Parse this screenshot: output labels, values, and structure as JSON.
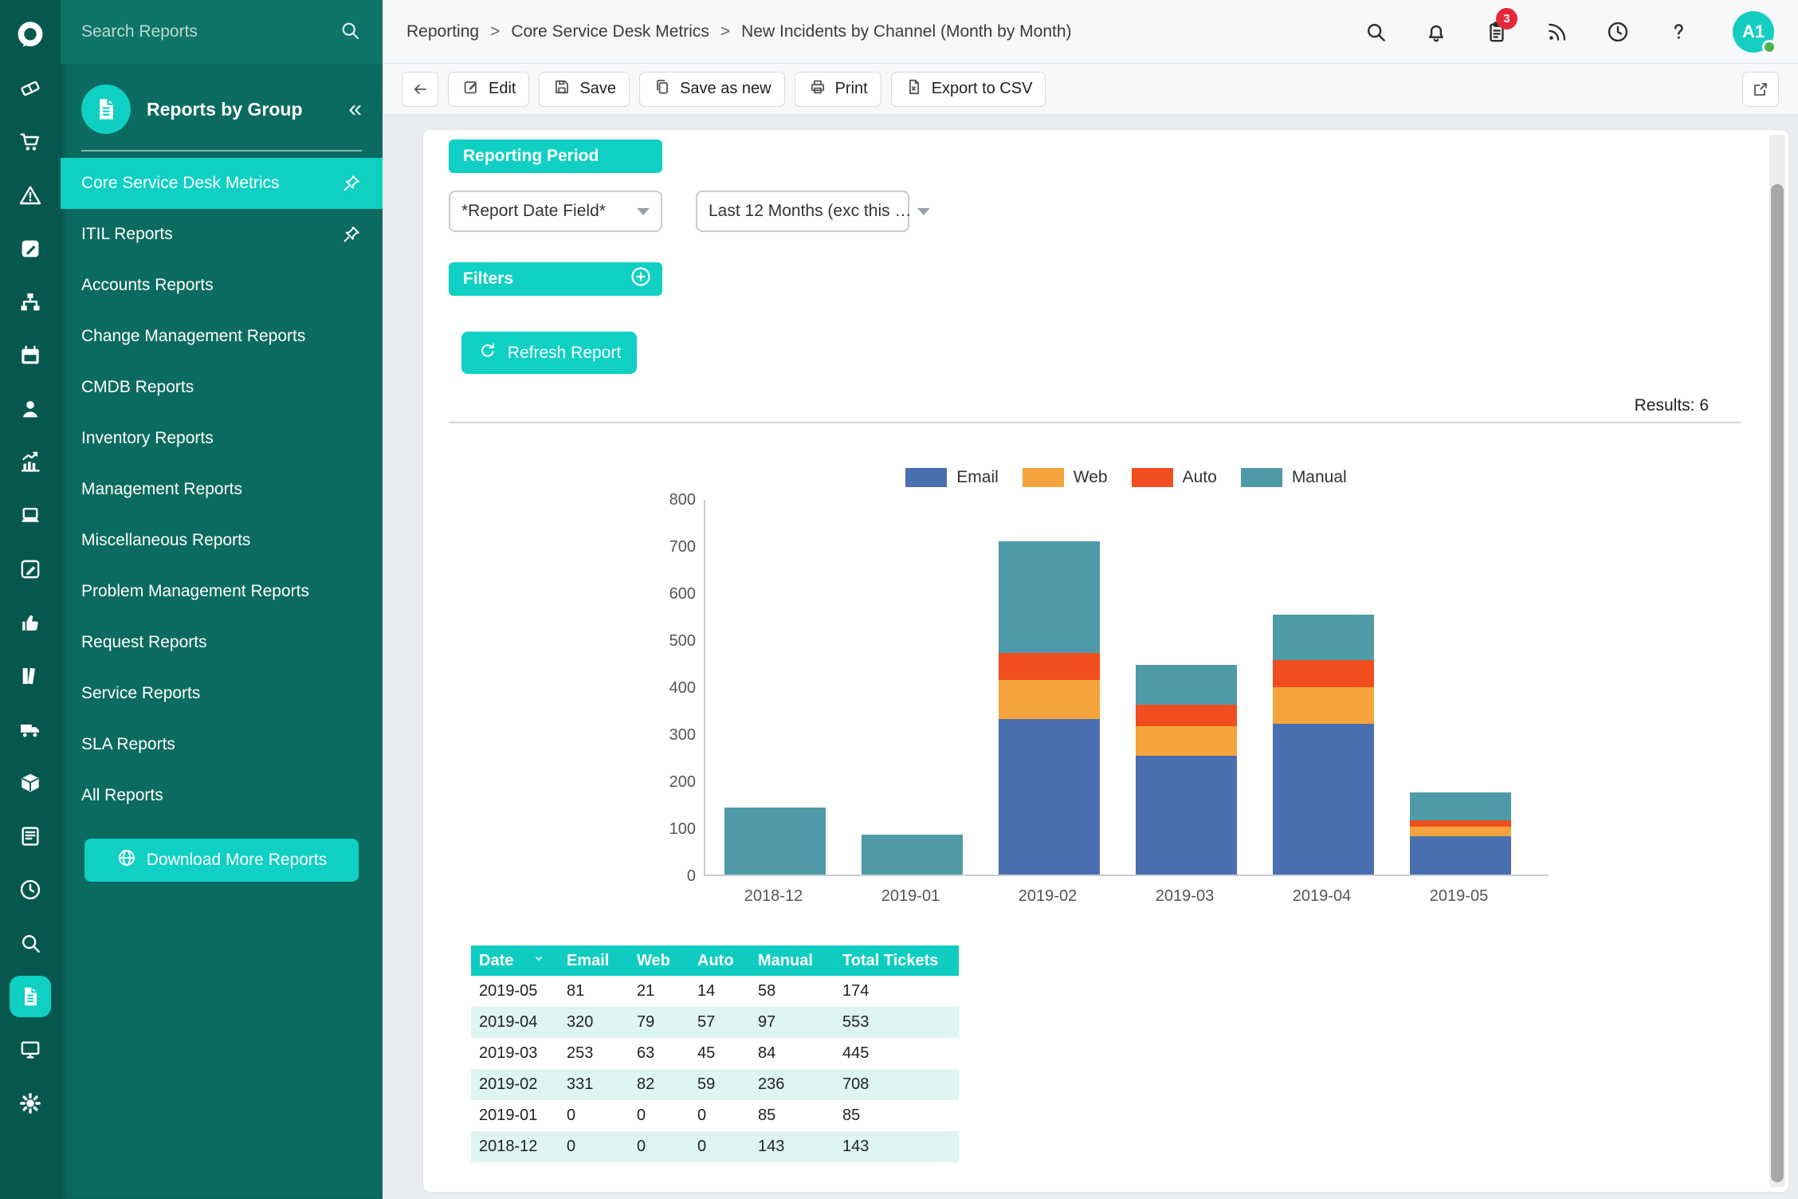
{
  "accent": "#0fd0c3",
  "rail": {
    "icons": [
      "halo-logo",
      "ticket",
      "shopping-cart",
      "warning-triangle",
      "edit-square",
      "sitemap",
      "calendar",
      "user",
      "bar-chart",
      "laptop",
      "note-edit",
      "thumbs-up",
      "books",
      "delivery-truck",
      "package-box",
      "article",
      "clock",
      "search",
      "report-document",
      "monitor",
      "settings-gear"
    ],
    "active_icon": "report-document"
  },
  "sidebar": {
    "search_placeholder": "Search Reports",
    "group_header": "Reports by Group",
    "collapse_glyph": "«",
    "items": [
      {
        "label": "Core Service Desk Metrics",
        "active": true,
        "pinned": true
      },
      {
        "label": "ITIL Reports",
        "active": false,
        "pinned": true
      },
      {
        "label": "Accounts Reports",
        "active": false,
        "pinned": false
      },
      {
        "label": "Change Management Reports",
        "active": false,
        "pinned": false
      },
      {
        "label": "CMDB Reports",
        "active": false,
        "pinned": false
      },
      {
        "label": "Inventory Reports",
        "active": false,
        "pinned": false
      },
      {
        "label": "Management Reports",
        "active": false,
        "pinned": false
      },
      {
        "label": "Miscellaneous Reports",
        "active": false,
        "pinned": false
      },
      {
        "label": "Problem Management Reports",
        "active": false,
        "pinned": false
      },
      {
        "label": "Request Reports",
        "active": false,
        "pinned": false
      },
      {
        "label": "Service Reports",
        "active": false,
        "pinned": false
      },
      {
        "label": "SLA Reports",
        "active": false,
        "pinned": false
      },
      {
        "label": "All Reports",
        "active": false,
        "pinned": false
      }
    ],
    "download_button": "Download More Reports"
  },
  "header": {
    "breadcrumb": [
      "Reporting",
      "Core Service Desk Metrics",
      "New Incidents by Channel (Month by Month)"
    ],
    "icons": [
      "search",
      "bell",
      "clipboard-tasks",
      "rss-feed",
      "clock-history",
      "help"
    ],
    "notification_count": "3",
    "avatar_text": "A1"
  },
  "toolbar": {
    "back_glyph": "←",
    "edit": "Edit",
    "save": "Save",
    "save_as_new": "Save as new",
    "print": "Print",
    "export_csv": "Export to CSV"
  },
  "report": {
    "reporting_period_label": "Reporting Period",
    "date_field_value": "*Report Date Field*",
    "period_value": "Last 12 Months (exc this …",
    "filters_label": "Filters",
    "refresh_label": "Refresh Report",
    "results_label": "Results: 6"
  },
  "chart_data": {
    "type": "bar",
    "stacked": true,
    "categories": [
      "2018-12",
      "2019-01",
      "2019-02",
      "2019-03",
      "2019-04",
      "2019-05"
    ],
    "series": [
      {
        "name": "Email",
        "color": "#4a6fb0",
        "values": [
          0,
          0,
          331,
          253,
          320,
          81
        ]
      },
      {
        "name": "Web",
        "color": "#f5a33c",
        "values": [
          0,
          0,
          82,
          63,
          79,
          21
        ]
      },
      {
        "name": "Auto",
        "color": "#f04e1e",
        "values": [
          0,
          0,
          59,
          45,
          57,
          14
        ]
      },
      {
        "name": "Manual",
        "color": "#4f9aa8",
        "values": [
          143,
          85,
          236,
          84,
          97,
          58
        ]
      }
    ],
    "title": "",
    "xlabel": "",
    "ylabel": "",
    "ylim": [
      0,
      800
    ],
    "ytick_step": 100,
    "grid": false,
    "legend_position": "top"
  },
  "table": {
    "columns": [
      "Date",
      "Email",
      "Web",
      "Auto",
      "Manual",
      "Total Tickets"
    ],
    "rows": [
      [
        "2019-05",
        "81",
        "21",
        "14",
        "58",
        "174"
      ],
      [
        "2019-04",
        "320",
        "79",
        "57",
        "97",
        "553"
      ],
      [
        "2019-03",
        "253",
        "63",
        "45",
        "84",
        "445"
      ],
      [
        "2019-02",
        "331",
        "82",
        "59",
        "236",
        "708"
      ],
      [
        "2019-01",
        "0",
        "0",
        "0",
        "85",
        "85"
      ],
      [
        "2018-12",
        "0",
        "0",
        "0",
        "143",
        "143"
      ]
    ]
  }
}
